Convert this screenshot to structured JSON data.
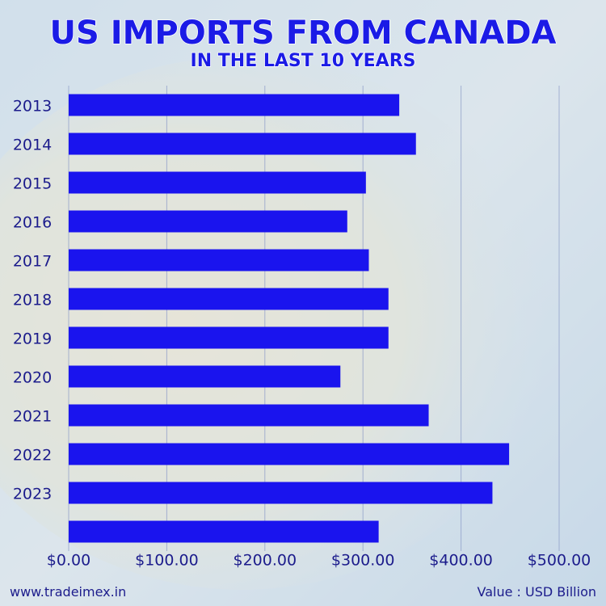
{
  "chart_data": {
    "type": "bar",
    "orientation": "horizontal",
    "title": "US IMPORTS FROM CANADA",
    "subtitle": "IN THE LAST 10 YEARS",
    "source": "www.tradeimex.in",
    "unit_note": "Value : USD Billion",
    "categories": [
      "2013",
      "2014",
      "2015",
      "2016",
      "2017",
      "2018",
      "2019",
      "2020",
      "2021",
      "2022",
      "2023",
      null
    ],
    "values": [
      337,
      354,
      303,
      284,
      306,
      326,
      326,
      277,
      367,
      449,
      432,
      316
    ],
    "color": "#1a14ee",
    "xlim": [
      0,
      500
    ],
    "xticks": [
      {
        "value": 0,
        "label": "$0.00"
      },
      {
        "value": 100,
        "label": "$100.00"
      },
      {
        "value": 200,
        "label": "$200.00"
      },
      {
        "value": 300,
        "label": "$300.00"
      },
      {
        "value": 400,
        "label": "$400.00"
      },
      {
        "value": 500,
        "label": "$500.00"
      }
    ],
    "grid": true
  }
}
